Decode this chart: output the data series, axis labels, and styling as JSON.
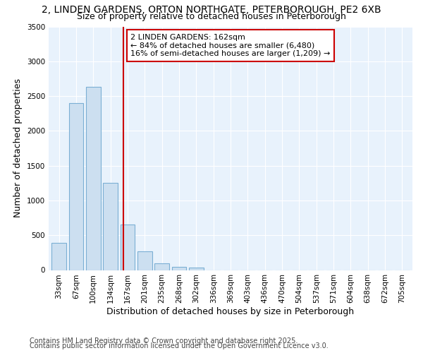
{
  "title": "2, LINDEN GARDENS, ORTON NORTHGATE, PETERBOROUGH, PE2 6XB",
  "subtitle": "Size of property relative to detached houses in Peterborough",
  "xlabel": "Distribution of detached houses by size in Peterborough",
  "ylabel": "Number of detached properties",
  "bar_labels": [
    "33sqm",
    "67sqm",
    "100sqm",
    "134sqm",
    "167sqm",
    "201sqm",
    "235sqm",
    "268sqm",
    "302sqm",
    "336sqm",
    "369sqm",
    "403sqm",
    "436sqm",
    "470sqm",
    "504sqm",
    "537sqm",
    "571sqm",
    "604sqm",
    "638sqm",
    "672sqm",
    "705sqm"
  ],
  "bar_values": [
    390,
    2400,
    2630,
    1250,
    650,
    265,
    100,
    50,
    35,
    0,
    0,
    0,
    0,
    0,
    0,
    0,
    0,
    0,
    0,
    0,
    0
  ],
  "bar_color": "#ccdff0",
  "bar_edge_color": "#7bafd4",
  "vline_x": 4,
  "vline_color": "#cc0000",
  "annotation_text": "2 LINDEN GARDENS: 162sqm\n← 84% of detached houses are smaller (6,480)\n16% of semi-detached houses are larger (1,209) →",
  "annotation_box_color": "#cc0000",
  "ylim": [
    0,
    3500
  ],
  "yticks": [
    0,
    500,
    1000,
    1500,
    2000,
    2500,
    3000,
    3500
  ],
  "fig_bg_color": "#ffffff",
  "plot_bg_color": "#e8f2fc",
  "grid_color": "#ffffff",
  "footer_line1": "Contains HM Land Registry data © Crown copyright and database right 2025.",
  "footer_line2": "Contains public sector information licensed under the Open Government Licence v3.0.",
  "title_fontsize": 10,
  "subtitle_fontsize": 9,
  "axis_label_fontsize": 9,
  "tick_fontsize": 7.5,
  "footer_fontsize": 7
}
